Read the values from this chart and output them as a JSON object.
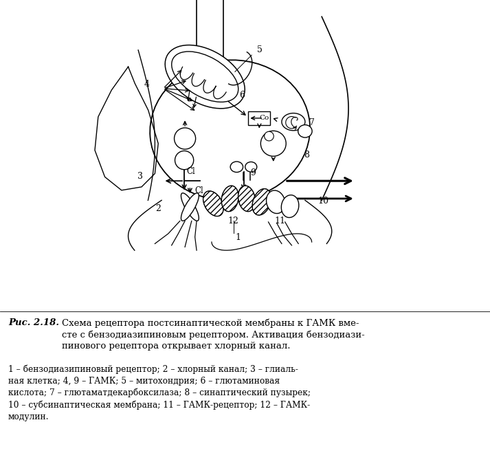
{
  "fig_width": 7.13,
  "fig_height": 6.59,
  "dpi": 100,
  "bg_color": "#ffffff",
  "caption_bold_italic": "Рис. 2.18.",
  "caption_main": "Схема рецептора постсинаптической мембраны к ГАМК вме-\nсте с бензодиазипиновым рецептором. Активация бензодиази-\nпинового рецептора открывает хлорный канал.",
  "caption_legend": "1 – бензодиазипиновый рецептор; 2 – хлорный канал; 3 – глиаль-\nная клетка; 4, 9 – ГАМК; 5 – митохондрия; 6 – глютаминовая\nкислота; 7 – глютаматдекарбоксилаза; 8 – синаптический пузырек;\n10 – субсинаптическая мембрана; 11 – ГАМК-рецептор; 12 – ГАМК-\nмодулин."
}
